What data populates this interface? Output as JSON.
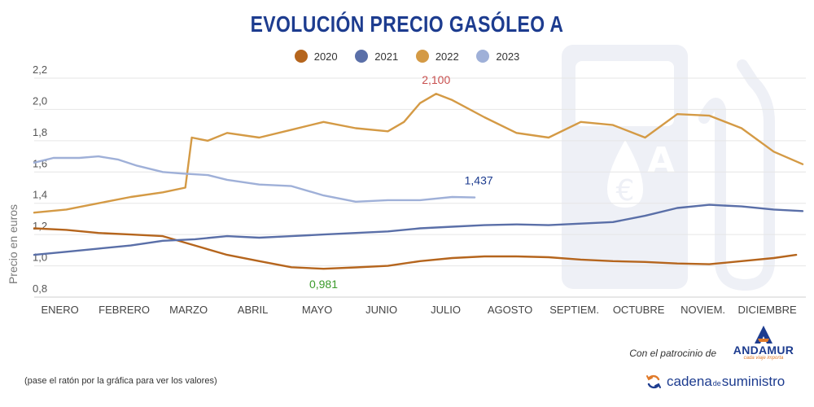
{
  "header": {
    "title": "EVOLUCIÓN PRECIO GASÓLEO A"
  },
  "legend": [
    {
      "name": "2020",
      "color": "#b5651d"
    },
    {
      "name": "2021",
      "color": "#5a6fa8"
    },
    {
      "name": "2022",
      "color": "#d49a45"
    },
    {
      "name": "2023",
      "color": "#9fb0d8"
    }
  ],
  "footer": {
    "sponsor_text": "Con el patrocinio de",
    "andamur_name": "ANDAMUR",
    "andamur_tagline": "cada viaje importa",
    "hint": "(pase el ratón por la gráfica para ver los valores)",
    "cadena_part1": "cadena",
    "cadena_part2": "de",
    "cadena_part3": "suministro"
  },
  "background_icon": "fuel-pump-euro-icon",
  "chart_data": {
    "type": "line",
    "title": "EVOLUCIÓN PRECIO GASÓLEO A",
    "ylabel": "Precio en euros",
    "xlabel": "",
    "ylim": [
      0.8,
      2.2
    ],
    "yticks": [
      {
        "value": 0.8,
        "label": "0,8"
      },
      {
        "value": 1.0,
        "label": "1,0"
      },
      {
        "value": 1.2,
        "label": "1,2"
      },
      {
        "value": 1.4,
        "label": "1,4"
      },
      {
        "value": 1.6,
        "label": "1,6"
      },
      {
        "value": 1.8,
        "label": "1,8"
      },
      {
        "value": 2.0,
        "label": "2,0"
      },
      {
        "value": 2.2,
        "label": "2,2"
      }
    ],
    "xlim": [
      0,
      12
    ],
    "months": [
      "ENERO",
      "FEBRERO",
      "MARZO",
      "ABRIL",
      "MAYO",
      "JUNIO",
      "JULIO",
      "AGOSTO",
      "SEPTIEM.",
      "OCTUBRE",
      "NOVIEM.",
      "DICIEMBRE"
    ],
    "grid": true,
    "legend_position": "top",
    "series": [
      {
        "name": "2020",
        "color": "#b5651d",
        "x": [
          0,
          0.5,
          1,
          1.5,
          2,
          2.5,
          3,
          3.5,
          4,
          4.5,
          5,
          5.5,
          6,
          6.5,
          7,
          7.5,
          8,
          8.5,
          9,
          9.5,
          10,
          10.5,
          11,
          11.5,
          11.85
        ],
        "values": [
          1.24,
          1.23,
          1.21,
          1.2,
          1.19,
          1.13,
          1.07,
          1.03,
          0.991,
          0.981,
          0.99,
          1.0,
          1.03,
          1.05,
          1.06,
          1.06,
          1.055,
          1.04,
          1.03,
          1.025,
          1.015,
          1.01,
          1.03,
          1.05,
          1.07
        ]
      },
      {
        "name": "2021",
        "color": "#5a6fa8",
        "x": [
          0,
          0.5,
          1,
          1.5,
          2,
          2.5,
          3,
          3.5,
          4,
          4.5,
          5,
          5.5,
          6,
          6.5,
          7,
          7.5,
          8,
          8.5,
          9,
          9.5,
          10,
          10.5,
          11,
          11.5,
          11.95
        ],
        "values": [
          1.07,
          1.09,
          1.11,
          1.13,
          1.16,
          1.17,
          1.19,
          1.18,
          1.19,
          1.2,
          1.21,
          1.22,
          1.24,
          1.25,
          1.26,
          1.265,
          1.26,
          1.27,
          1.28,
          1.32,
          1.37,
          1.39,
          1.38,
          1.36,
          1.35
        ]
      },
      {
        "name": "2022",
        "color": "#d49a45",
        "x": [
          0,
          0.5,
          1,
          1.5,
          2,
          2.35,
          2.45,
          2.7,
          3,
          3.5,
          4,
          4.5,
          5,
          5.5,
          5.75,
          6,
          6.25,
          6.5,
          7,
          7.5,
          8,
          8.5,
          9,
          9.5,
          10,
          10.5,
          11,
          11.5,
          11.95
        ],
        "values": [
          1.34,
          1.36,
          1.4,
          1.44,
          1.47,
          1.5,
          1.82,
          1.8,
          1.85,
          1.82,
          1.87,
          1.92,
          1.88,
          1.86,
          1.92,
          2.04,
          2.1,
          2.06,
          1.95,
          1.85,
          1.82,
          1.92,
          1.9,
          1.82,
          1.97,
          1.96,
          1.88,
          1.73,
          1.65
        ]
      },
      {
        "name": "2023",
        "color": "#9fb0d8",
        "x": [
          0,
          0.3,
          0.7,
          1,
          1.3,
          1.6,
          2,
          2.3,
          2.7,
          3,
          3.5,
          4,
          4.5,
          5,
          5.5,
          6,
          6.5,
          6.85
        ],
        "values": [
          1.66,
          1.69,
          1.69,
          1.7,
          1.68,
          1.64,
          1.6,
          1.59,
          1.58,
          1.55,
          1.52,
          1.51,
          1.45,
          1.41,
          1.42,
          1.42,
          1.44,
          1.437
        ]
      }
    ],
    "annotations": [
      {
        "label": "2,100",
        "x": 6.25,
        "y": 2.1,
        "color": "#c8504f"
      },
      {
        "label": "1,437",
        "x": 6.85,
        "y": 1.437,
        "color": "#1d3c8f"
      },
      {
        "label": "0,981",
        "x": 4.5,
        "y": 0.981,
        "color": "#3a9a2a"
      }
    ]
  }
}
